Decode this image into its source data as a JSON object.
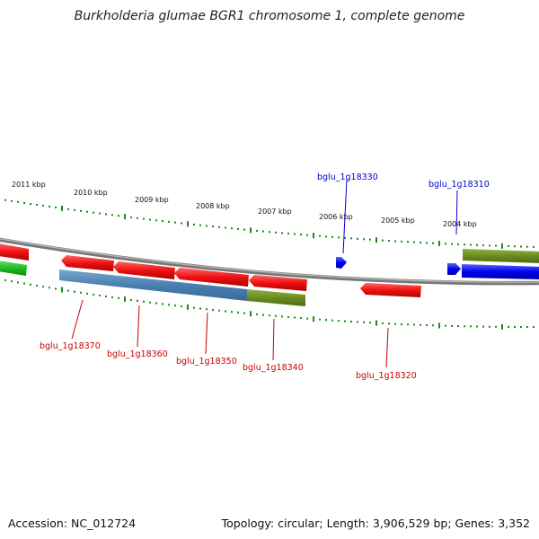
{
  "title": "Burkholderia glumae BGR1 chromosome 1, complete genome",
  "scale_labels": [
    "2011 kbp",
    "2010 kbp",
    "2009 kbp",
    "2008 kbp",
    "2007 kbp",
    "2006 kbp",
    "2005 kbp",
    "2004 kbp"
  ],
  "genes": {
    "forward": [
      "bglu_1g18330",
      "bglu_1g18310"
    ],
    "reverse": [
      "bglu_1g18370",
      "bglu_1g18360",
      "bglu_1g18350",
      "bglu_1g18340",
      "bglu_1g18320"
    ]
  },
  "colors": {
    "forward_label": "#0000cc",
    "reverse_label": "#cc0000",
    "red_gene": "#ee1111",
    "blue_gene": "#0000ee",
    "steelblue_region": "#4a7fb0",
    "olive_region": "#6b8c1e",
    "green_region": "#22bb22",
    "backbone": "#888888",
    "ticks": "#1a8a1a"
  },
  "footer": {
    "accession": "Accession: NC_012724",
    "summary": "Topology: circular; Length: 3,906,529 bp; Genes: 3,352"
  }
}
